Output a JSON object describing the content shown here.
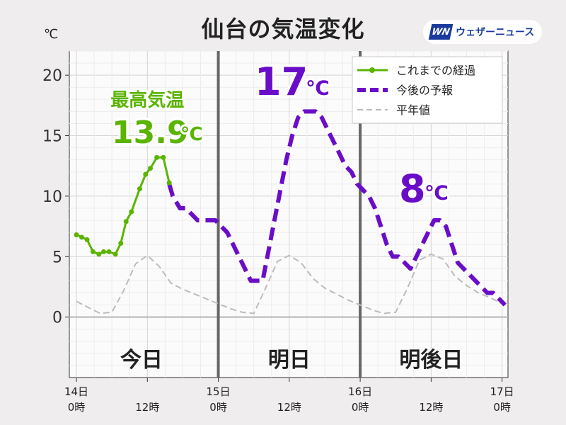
{
  "header": {
    "title": "仙台の気温変化",
    "unit": "℃"
  },
  "brand": {
    "logo_text": "WN",
    "name": "ウェザーニュース",
    "color": "#1a3b9c"
  },
  "chart_data": {
    "type": "line",
    "title": "仙台の気温変化",
    "ylabel": "℃",
    "ylim": [
      -5,
      22
    ],
    "y_ticks": [
      0,
      5,
      10,
      15,
      20
    ],
    "xlim_hours": [
      -1.2,
      73
    ],
    "x_ticks": [
      {
        "hour": 0,
        "line1": "14日",
        "line2": "0時"
      },
      {
        "hour": 12,
        "line1": "",
        "line2": "12時"
      },
      {
        "hour": 24,
        "line1": "15日",
        "line2": "0時"
      },
      {
        "hour": 36,
        "line1": "",
        "line2": "12時"
      },
      {
        "hour": 48,
        "line1": "16日",
        "line2": "0時"
      },
      {
        "hour": 60,
        "line1": "",
        "line2": "12時"
      },
      {
        "hour": 72,
        "line1": "17日",
        "line2": "0時"
      }
    ],
    "day_dividers": [
      24,
      48
    ],
    "day_labels": [
      {
        "hour": 11,
        "text": "今日"
      },
      {
        "hour": 36,
        "text": "明日"
      },
      {
        "hour": 60,
        "text": "明後日"
      }
    ],
    "grid": true,
    "legend": {
      "position": "top-right",
      "items": [
        {
          "label": "これまでの経過",
          "color": "#5ab400",
          "style": "solid-marker"
        },
        {
          "label": "今後の予報",
          "color": "#6a0dc8",
          "style": "dashed"
        },
        {
          "label": "平年値",
          "color": "#bcbcbc",
          "style": "dashed-thin"
        }
      ]
    },
    "series": [
      {
        "name": "これまでの経過",
        "color": "#5ab400",
        "x": [
          0,
          0.9,
          1.8,
          2.8,
          3.8,
          4.6,
          5.5,
          6.6,
          7.5,
          8.4,
          9.3,
          10.7,
          11.7,
          12.5,
          13.6,
          14.7,
          15.7
        ],
        "y": [
          6.8,
          6.6,
          6.4,
          5.4,
          5.2,
          5.4,
          5.4,
          5.2,
          6.1,
          7.9,
          8.7,
          10.6,
          11.8,
          12.3,
          13.2,
          13.2,
          11.1
        ]
      },
      {
        "name": "今後の予報",
        "color": "#6a0dc8",
        "x": [
          15.7,
          16.3,
          17.5,
          18.5,
          19.5,
          20.5,
          21.5,
          22.5,
          23.5,
          24.5,
          25.5,
          26.5,
          27.5,
          28.5,
          29.5,
          30.5,
          31.5,
          32.5,
          33.5,
          34.5,
          35.5,
          36.5,
          37.5,
          38.5,
          39.5,
          40.5,
          41.5,
          42.5,
          43.5,
          44.5,
          45.5,
          46.5,
          47.5,
          48.5,
          49.5,
          50.5,
          51.5,
          52.5,
          53.5,
          54.5,
          55.5,
          56.5,
          57.5,
          58.5,
          59.5,
          60.5,
          61.5,
          62.5,
          63.5,
          64.5,
          65.5,
          66.5,
          67.5,
          68.5,
          69.5,
          70.5,
          71.5,
          72.5
        ],
        "y": [
          11,
          10,
          9,
          9,
          8.5,
          8,
          8,
          8,
          8,
          7.5,
          7,
          6,
          5,
          4,
          3,
          3,
          3,
          5.5,
          8,
          10.5,
          13,
          15,
          16.5,
          17,
          17,
          17,
          16.5,
          15.5,
          14.5,
          13.5,
          12.5,
          12,
          11,
          10.5,
          10,
          9,
          7.5,
          6,
          5,
          5,
          4.5,
          4,
          5,
          6,
          7,
          8,
          8,
          7.5,
          6,
          4.5,
          4,
          3.5,
          3,
          2.5,
          2,
          2,
          1.5,
          1
        ]
      },
      {
        "name": "平年値",
        "color": "#bcbcbc",
        "x": [
          0,
          2,
          4,
          6,
          8,
          10,
          12,
          14,
          16,
          18,
          20,
          22,
          24,
          26,
          28,
          30,
          32,
          34,
          36,
          38,
          40,
          42,
          44,
          46,
          48,
          50,
          52,
          54,
          56,
          58,
          60,
          62,
          64,
          66,
          68,
          70,
          72
        ],
        "y": [
          1.3,
          0.8,
          0.3,
          0.4,
          2.2,
          4.4,
          5.1,
          4.2,
          2.8,
          2.3,
          1.9,
          1.5,
          1.1,
          0.7,
          0.4,
          0.3,
          2.4,
          4.6,
          5.1,
          4.5,
          3.2,
          2.4,
          1.9,
          1.4,
          1.0,
          0.6,
          0.3,
          0.4,
          2.4,
          4.7,
          5.2,
          4.8,
          3.4,
          2.6,
          2.0,
          1.6,
          1.1
        ]
      }
    ],
    "annotations": [
      {
        "hour": 5.3,
        "value": 13.9,
        "lines": [
          "最高気温",
          "13.9",
          "℃"
        ],
        "color": "#5ab400"
      },
      {
        "hour": 37.5,
        "value": 17,
        "lines": [
          "17",
          "℃"
        ],
        "color": "#6a0dc8"
      },
      {
        "hour": 60.5,
        "value": 8,
        "lines": [
          "8",
          "℃"
        ],
        "color": "#6a0dc8"
      }
    ]
  }
}
